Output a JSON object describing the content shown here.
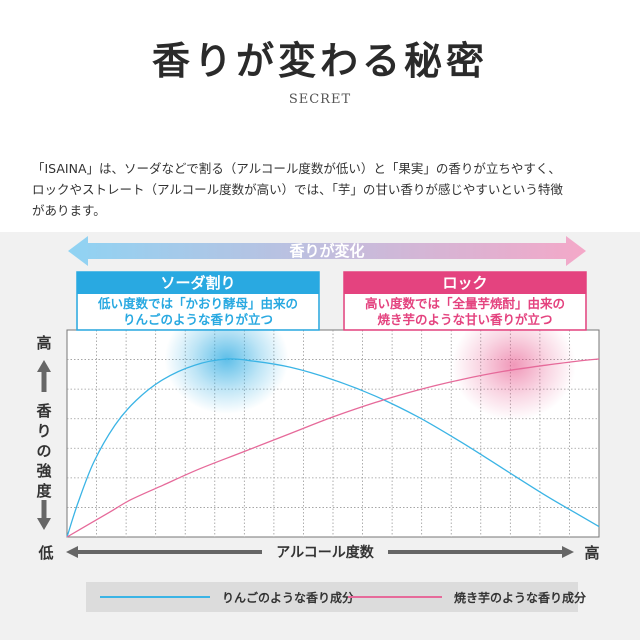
{
  "page": {
    "title": "香りが変わる秘密",
    "subtitle": "SECRET",
    "paragraph_lines": [
      "「ISAINA」は、ソーダなどで割る（アルコール度数が低い）と「果実」の香りが立ちやすく、",
      "ロックやストレート（アルコール度数が高い）では、「芋」の甘い香りが感じやすいという特徴",
      "があります。"
    ]
  },
  "colors": {
    "blue": "#3bb4e5",
    "blue_box": "#29a9e1",
    "pink": "#e66a9a",
    "pink_box": "#e4437f",
    "banner_left": "#8fd3f3",
    "banner_right": "#f4a8c8",
    "grid": "#9a9a9a"
  },
  "chart_data": {
    "type": "line",
    "banner": "香りが変化",
    "callouts": [
      {
        "title": "ソーダ割り",
        "lines": [
          "低い度数では「かおり酵母」由来の",
          "りんごのような香りが立つ"
        ]
      },
      {
        "title": "ロック",
        "lines": [
          "高い度数では「全量芋焼酎」由来の",
          "焼き芋のような甘い香りが立つ"
        ]
      }
    ],
    "y_axis": {
      "high": "高",
      "low": "低",
      "label_chars": [
        "香",
        "り",
        "の",
        "強",
        "度"
      ]
    },
    "x_axis": {
      "label": "アルコール度数",
      "high": "高"
    },
    "xlim": [
      0,
      1
    ],
    "ylim": [
      0,
      1
    ],
    "series": [
      {
        "name": "りんごのような香り成分",
        "color": "#3bb4e5",
        "x": [
          0,
          0.02,
          0.05,
          0.09,
          0.13,
          0.18,
          0.24,
          0.3,
          0.35,
          0.42,
          0.5,
          0.58,
          0.66,
          0.74,
          0.82,
          0.9,
          0.96,
          1.0
        ],
        "y": [
          0,
          0.16,
          0.36,
          0.54,
          0.66,
          0.76,
          0.83,
          0.86,
          0.85,
          0.82,
          0.76,
          0.68,
          0.58,
          0.46,
          0.33,
          0.2,
          0.11,
          0.05
        ]
      },
      {
        "name": "焼き芋のような香り成分",
        "color": "#e66a9a",
        "x": [
          0,
          0.04,
          0.08,
          0.12,
          0.18,
          0.25,
          0.33,
          0.42,
          0.5,
          0.58,
          0.66,
          0.74,
          0.82,
          0.9,
          0.96,
          1.0
        ],
        "y": [
          0,
          0.06,
          0.12,
          0.18,
          0.25,
          0.33,
          0.41,
          0.5,
          0.58,
          0.65,
          0.71,
          0.76,
          0.8,
          0.83,
          0.85,
          0.86
        ]
      }
    ],
    "glows": [
      {
        "color": "#29a9e1",
        "x": 0.3,
        "y": 0.86
      },
      {
        "color": "#e4437f",
        "x": 0.84,
        "y": 0.83
      }
    ],
    "legend_placement": "bottom"
  }
}
